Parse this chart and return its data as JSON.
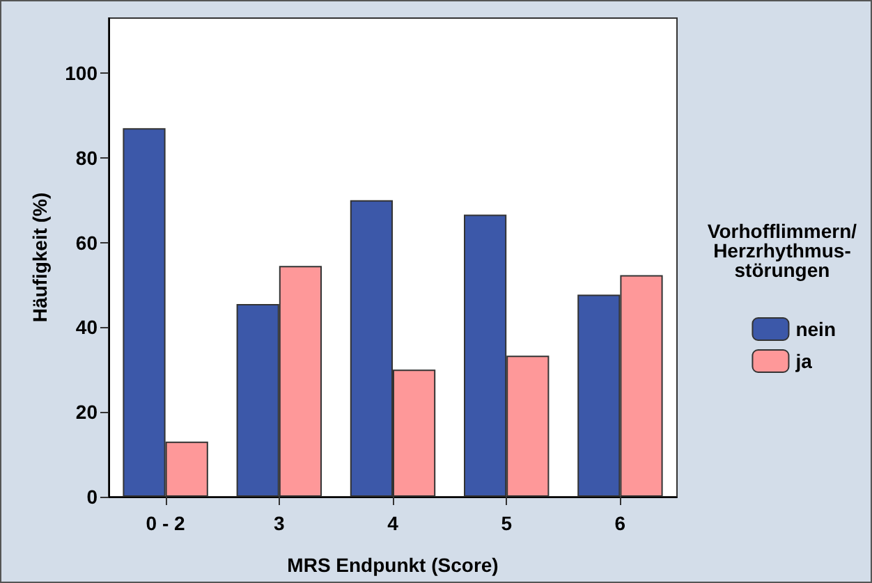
{
  "chart_data": {
    "type": "bar",
    "xlabel": "MRS Endpunkt (Score)",
    "ylabel": "Häufigkeit (%)",
    "legend_title": "Vorhofflimmern/\nHerzrhythmus-\nstörungen",
    "categories": [
      "0 - 2",
      "3",
      "4",
      "5",
      "6"
    ],
    "series": [
      {
        "name": "nein",
        "color": "#3c58a9",
        "values": [
          87.0,
          45.5,
          70.0,
          66.6,
          47.7
        ]
      },
      {
        "name": "ja",
        "color": "#fe9899",
        "values": [
          13.0,
          54.5,
          30.0,
          33.3,
          52.3
        ]
      }
    ],
    "ylim": [
      0,
      113
    ],
    "yticks": [
      0,
      20,
      40,
      60,
      80,
      100
    ],
    "grid": false,
    "legend": "right"
  }
}
